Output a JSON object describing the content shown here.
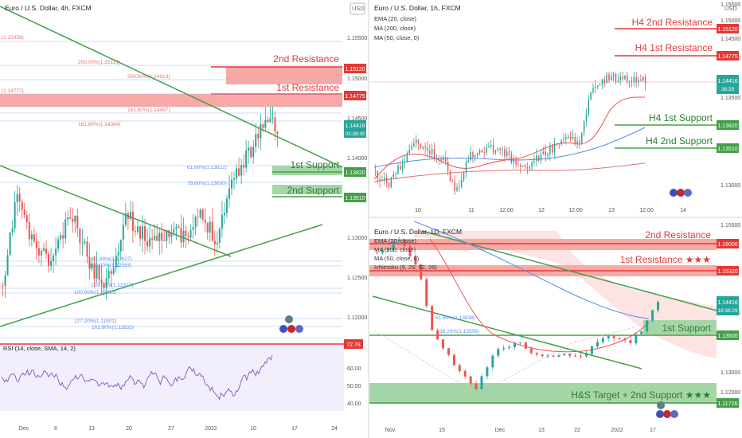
{
  "colors": {
    "up": "#26a69a",
    "down": "#ef5350",
    "green_line": "#43a047",
    "red_line": "#e53935",
    "resist_fill": "#f8a9a6",
    "support_fill": "#a5d6a7",
    "axis_text": "#333333",
    "ema": "#ef5350",
    "ma200": "#e57373",
    "ma50": "#5b8def",
    "rsi": "#7e57c2",
    "fib": "#5b8def"
  },
  "left": {
    "title": "Euro / U.S. Dollar, 4h, FXCM",
    "usd": "USD",
    "price_ticks": [
      "1.15500",
      "1.15000",
      "1.14500",
      "1.14000",
      "1.13000",
      "1.12500",
      "1.12000"
    ],
    "price_tag": "1.14416",
    "price_tag_time": "02:38:30",
    "resist2_tag": "1.15120",
    "resist1_tag": "1.14775",
    "support1_tag": "1.13820",
    "support2_tag": "1.13510",
    "lbl_r2": "2nd Resistance",
    "lbl_r1": "1st Resistance",
    "lbl_s1": "1st Support",
    "lbl_s2": "2nd Support",
    "fibs": [
      "(1.15458)",
      "200.00%(1.15119)",
      "200.00%(1.14913)",
      "(1.14777)",
      "161.80%(1.14592)",
      "161.80%(1.14497)",
      "161.80%(1.14364)",
      "61.80%(1.13822)",
      "78.60%(1.13630)",
      "61.80%(1.12627)",
      "100.00%(1.12593)",
      "100.00%(1.12317)",
      "100.00%(1.12215)",
      "127.20%(1.11901)",
      "161.80%(1.11833)"
    ],
    "x_labels": [
      "Dec",
      "6",
      "13",
      "20",
      "27",
      "2022",
      "10",
      "17",
      "24"
    ],
    "rsi_title": "RSI (14, close, SMA, 14, 2)",
    "rsi_tag": "72.78",
    "rsi_ticks": [
      "60.00",
      "50.00",
      "40.00"
    ]
  },
  "right_top": {
    "title": "Euro / U.S. Dollar, 1h, FXCM",
    "indicators": [
      "EMA (20, close)",
      "MA (200, close)",
      "MA (50, close, 0)"
    ],
    "usd": "USD",
    "price_ticks": [
      "1.15500",
      "1.15000",
      "1.14500",
      "1.14000",
      "1.13500",
      "1.13000"
    ],
    "price_tag": "1.14416",
    "price_tag_time": "38:29",
    "tags": [
      "1.15120",
      "1.14775",
      "1.13820",
      "1.13510"
    ],
    "lbl_r2": "H4 2nd Resistance",
    "lbl_r1": "H4 1st Resistance",
    "lbl_s1": "H4 1st Support",
    "lbl_s2": "H4 2nd Support",
    "x_labels": [
      "10",
      "11",
      "12:00",
      "12",
      "12:00",
      "13",
      "12:00",
      "14"
    ]
  },
  "right_bottom": {
    "title": "Euro / U.S. Dollar, 1D, FXCM",
    "indicators": [
      "EMA (20, close)",
      "MA (200, close)",
      "MA (50, close, 0)",
      "Ichimoku (9, 26, 52, 26)"
    ],
    "price_ticks": [
      "1.15500",
      "1.14000",
      "1.13000",
      "1.12000"
    ],
    "price_tag": "1.14416",
    "price_tag_time": "18:38:29",
    "tags": [
      "1.16000",
      "1.15320",
      "1.13500",
      "1.11726"
    ],
    "lbl_r2": "2nd Resistance",
    "lbl_r1": "1st Resistance ★★★",
    "lbl_s1": "1st Support",
    "lbl_hs": "H&S Target + 2nd Support ★★★",
    "fibs": [
      "61.80%(1.13838)",
      "38.20%(1.13509)"
    ],
    "x_labels": [
      "Nov",
      "15",
      "Dec",
      "13",
      "22",
      "2022",
      "17"
    ]
  },
  "chart_data": [
    {
      "type": "candlestick",
      "title": "Euro / U.S. Dollar, 4h, FXCM",
      "levels": {
        "2nd Resistance": 1.1512,
        "1st Resistance": 1.14775,
        "1st Support": 1.1382,
        "2nd Support": 1.1351
      },
      "last_price": 1.14416,
      "y_range": [
        1.117,
        1.158
      ]
    },
    {
      "type": "candlestick",
      "title": "Euro / U.S. Dollar, 1h, FXCM",
      "levels": {
        "H4 2nd Resistance": 1.1512,
        "H4 1st Resistance": 1.14775,
        "H4 1st Support": 1.1382,
        "H4 2nd Support": 1.1351
      },
      "last_price": 1.14416,
      "y_range": [
        1.127,
        1.158
      ]
    },
    {
      "type": "candlestick",
      "title": "Euro / U.S. Dollar, 1D, FXCM",
      "levels": {
        "2nd Resistance": 1.16,
        "1st Resistance": 1.1532,
        "1st Support": 1.135,
        "H&S Target + 2nd Support": 1.11726
      },
      "last_price": 1.14416,
      "y_range": [
        1.113,
        1.162
      ]
    }
  ]
}
